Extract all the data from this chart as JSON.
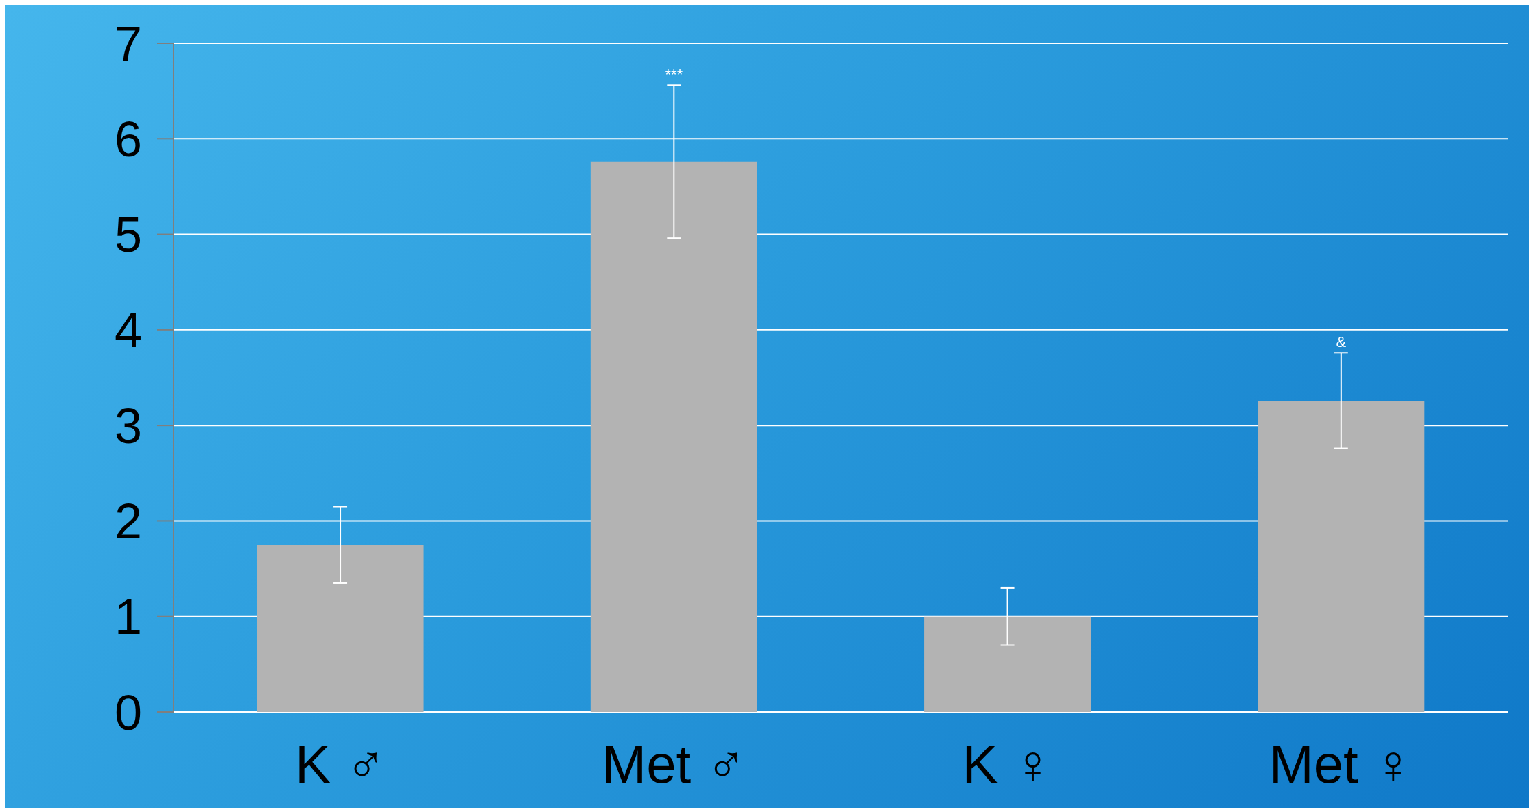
{
  "chart_data": {
    "type": "bar",
    "categories": [
      "K ♂",
      "Met ♂",
      "K ♀",
      "Met ♀"
    ],
    "values": [
      1.75,
      5.76,
      1.0,
      3.26
    ],
    "errors": [
      0.4,
      0.8,
      0.3,
      0.5
    ],
    "color": "#b3b3b3",
    "ylim": [
      0,
      7
    ],
    "yticks": [
      0,
      1,
      2,
      3,
      4,
      5,
      6,
      7
    ],
    "grid": "y",
    "annotations": [
      {
        "text": "***",
        "x": "Met ♂",
        "y": 6.56
      },
      {
        "text": "&",
        "x": "Met ♀",
        "y": 3.76
      }
    ]
  }
}
